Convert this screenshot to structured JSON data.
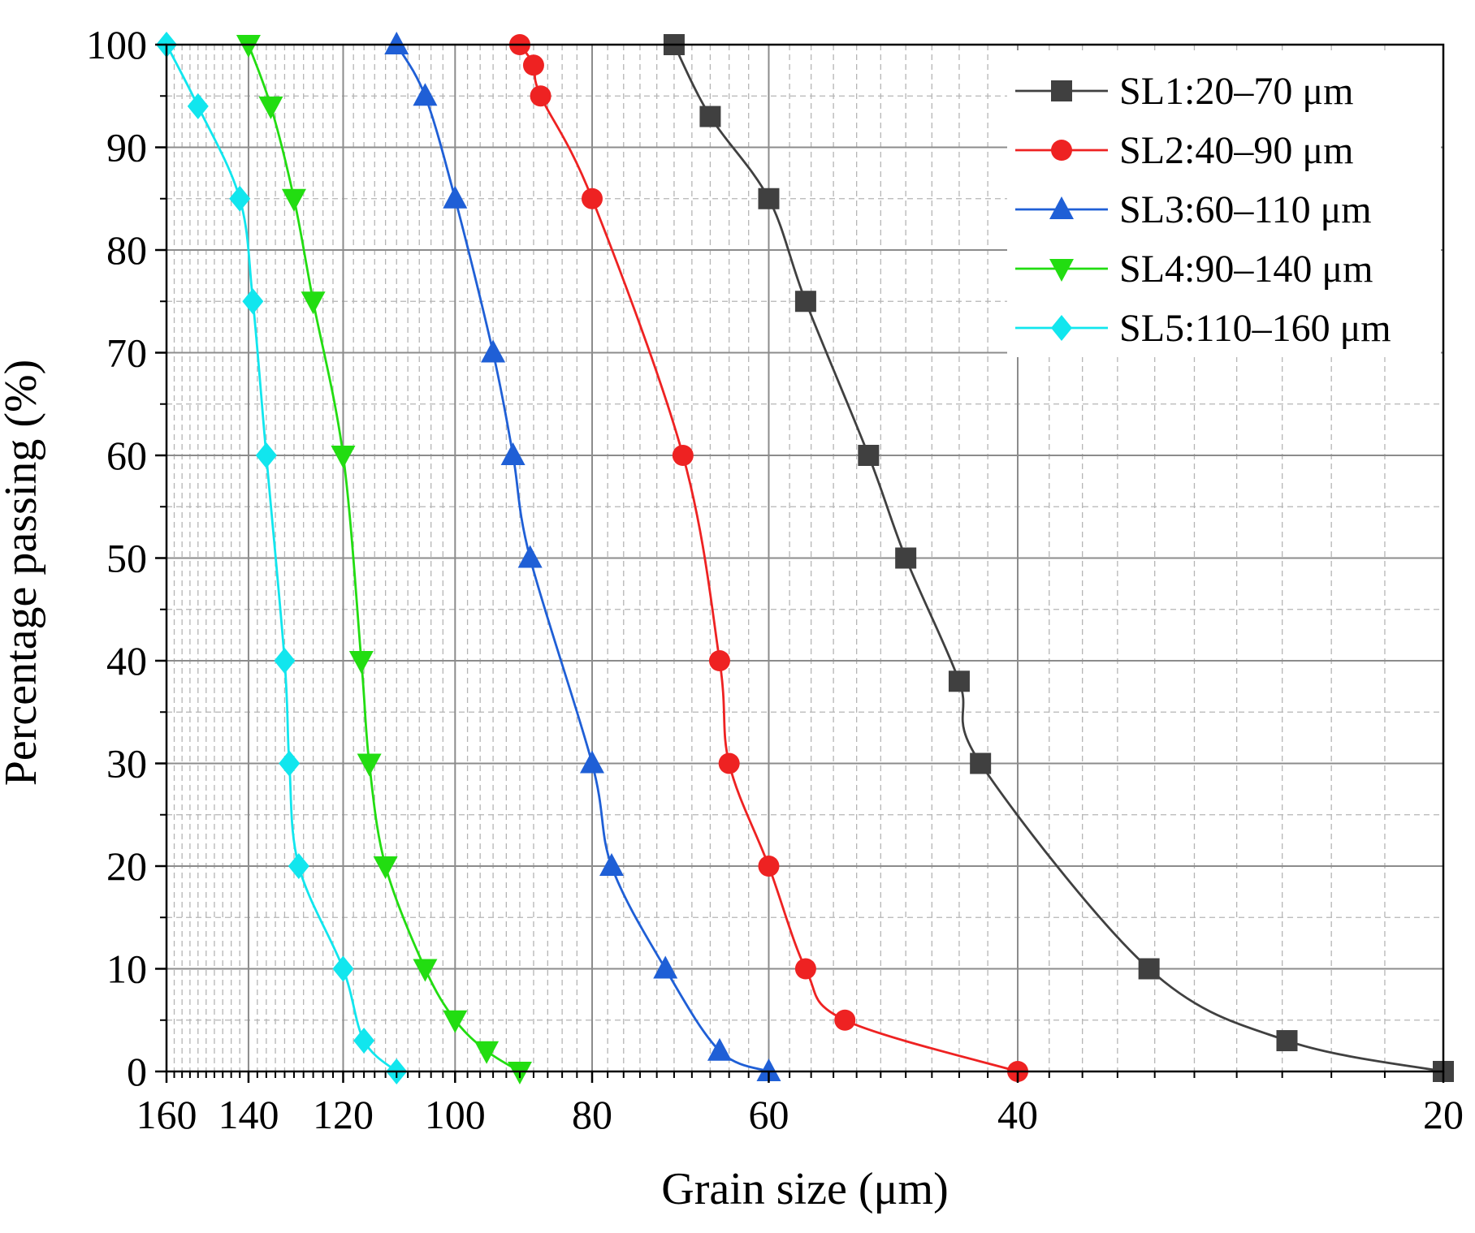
{
  "chart_data": {
    "type": "line",
    "title": "",
    "xlabel": "Grain size (μm)",
    "ylabel": "Percentage passing (%)",
    "xscale": "log",
    "xaxis_reversed": true,
    "xlim": [
      20,
      160
    ],
    "ylim": [
      0,
      100
    ],
    "xticks": [
      160,
      140,
      120,
      100,
      80,
      60,
      40,
      20
    ],
    "xtick_labels": [
      "160",
      "140",
      "120",
      "100",
      "80",
      "60",
      "40",
      "20"
    ],
    "yticks": [
      0,
      10,
      20,
      30,
      40,
      50,
      60,
      70,
      80,
      90,
      100
    ],
    "ytick_labels": [
      "0",
      "10",
      "20",
      "30",
      "40",
      "50",
      "60",
      "70",
      "80",
      "90",
      "100"
    ],
    "grid": true,
    "legend_position": "top-right",
    "series": [
      {
        "name": "SL1:20–70 μm",
        "color": "#404040",
        "marker": "square",
        "x": [
          70,
          66,
          60,
          56.5,
          51,
          48,
          44,
          42.5,
          32.3,
          25.8,
          20
        ],
        "y": [
          100,
          93,
          85,
          75,
          60,
          50,
          38,
          30,
          10,
          3,
          0
        ]
      },
      {
        "name": "SL2:40–90 μm",
        "color": "#ee2222",
        "marker": "circle",
        "x": [
          90,
          88,
          87,
          80,
          69,
          65,
          64,
          60,
          56.5,
          53,
          40
        ],
        "y": [
          100,
          98,
          95,
          85,
          60,
          40,
          30,
          20,
          10,
          5,
          0
        ]
      },
      {
        "name": "SL3:60–110 μm",
        "color": "#1f5fd6",
        "marker": "triangle-up",
        "x": [
          110,
          105,
          100,
          94,
          91,
          88.5,
          80,
          77.5,
          71,
          65,
          60
        ],
        "y": [
          100,
          95,
          85,
          70,
          60,
          50,
          30,
          20,
          10,
          2,
          0
        ]
      },
      {
        "name": "SL4:90–140 μm",
        "color": "#22dd11",
        "marker": "triangle-down",
        "x": [
          140,
          135,
          130,
          126,
          120,
          116.5,
          115,
          112,
          105,
          100,
          95,
          90
        ],
        "y": [
          100,
          94,
          85,
          75,
          60,
          40,
          30,
          20,
          10,
          5,
          2,
          0
        ]
      },
      {
        "name": "SL5:110–160 μm",
        "color": "#11e6ee",
        "marker": "diamond",
        "x": [
          160,
          152,
          142,
          139,
          136,
          132,
          131,
          129,
          120,
          116,
          110
        ],
        "y": [
          100,
          94,
          85,
          75,
          60,
          40,
          30,
          20,
          10,
          3,
          0
        ]
      }
    ]
  }
}
